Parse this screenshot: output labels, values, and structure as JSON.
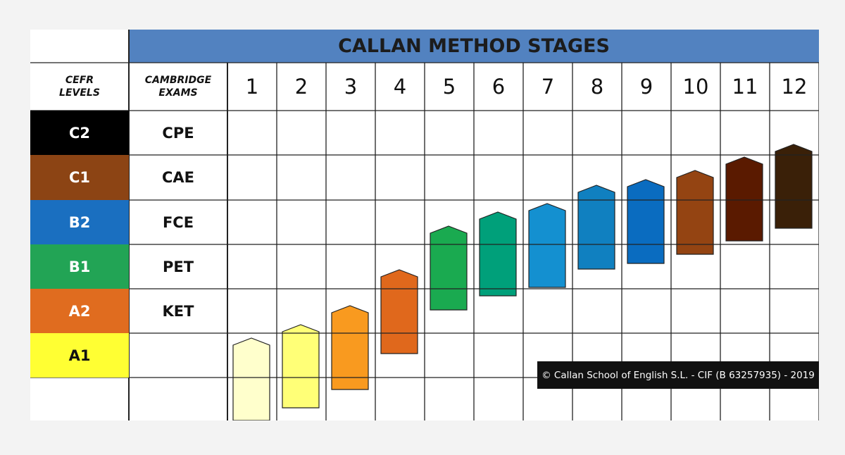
{
  "title": "CALLAN METHOD STAGES",
  "header": {
    "cefr": "CEFR LEVELS",
    "cambridge": "CAMBRIDGE EXAMS"
  },
  "stages": [
    1,
    2,
    3,
    4,
    5,
    6,
    7,
    8,
    9,
    10,
    11,
    12
  ],
  "levels": [
    {
      "level": "C2",
      "exam": "CPE"
    },
    {
      "level": "C1",
      "exam": "CAE"
    },
    {
      "level": "B2",
      "exam": "FCE"
    },
    {
      "level": "B1",
      "exam": "PET"
    },
    {
      "level": "A2",
      "exam": "KET"
    },
    {
      "level": "A1"
    }
  ],
  "copyright": "© Callan School of English S.L. - CIF (B 63257935) - 2019"
}
